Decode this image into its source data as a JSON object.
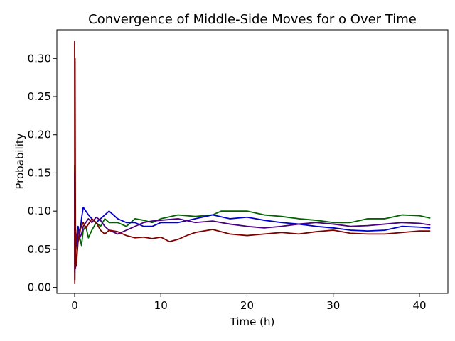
{
  "chart_data": {
    "type": "line",
    "title": "Convergence of Middle-Side Moves for o Over Time",
    "xlabel": "Time (h)",
    "ylabel": "Probability",
    "xlim": [
      -2.06,
      43.3
    ],
    "ylim": [
      -0.0078,
      0.3375
    ],
    "xticks": [
      0,
      10,
      20,
      30,
      40
    ],
    "yticks": [
      0.0,
      0.05,
      0.1,
      0.15,
      0.2,
      0.25,
      0.3
    ],
    "xtick_labels": [
      "0",
      "10",
      "20",
      "30",
      "40"
    ],
    "ytick_labels": [
      "0.00",
      "0.05",
      "0.10",
      "0.15",
      "0.20",
      "0.25",
      "0.30"
    ],
    "grid": false,
    "legend": "none",
    "series": [
      {
        "color": "#006400",
        "x": [
          0,
          0.02,
          0.05,
          0.1,
          0.15,
          0.2,
          0.3,
          0.4,
          0.6,
          0.8,
          1.0,
          1.3,
          1.6,
          2.0,
          2.5,
          3.0,
          3.5,
          4.0,
          5.0,
          6.0,
          7.0,
          8.0,
          9.0,
          10.0,
          12.0,
          14.0,
          16.0,
          17.0,
          18.0,
          20.0,
          22.0,
          24.0,
          26.0,
          28.0,
          30.0,
          32.0,
          34.0,
          36.0,
          38.0,
          40.0,
          41.2
        ],
        "y": [
          0.16,
          0.01,
          0.08,
          0.03,
          0.07,
          0.055,
          0.075,
          0.06,
          0.065,
          0.055,
          0.075,
          0.08,
          0.065,
          0.075,
          0.085,
          0.08,
          0.09,
          0.085,
          0.085,
          0.08,
          0.09,
          0.088,
          0.085,
          0.09,
          0.095,
          0.093,
          0.095,
          0.1,
          0.1,
          0.1,
          0.095,
          0.093,
          0.09,
          0.088,
          0.085,
          0.085,
          0.09,
          0.09,
          0.095,
          0.094,
          0.091
        ]
      },
      {
        "color": "#0000cd",
        "x": [
          0,
          0.02,
          0.05,
          0.1,
          0.15,
          0.2,
          0.3,
          0.4,
          0.6,
          0.8,
          1.0,
          1.3,
          1.6,
          2.0,
          2.5,
          3.0,
          3.5,
          4.0,
          5.0,
          6.0,
          7.0,
          8.0,
          9.0,
          10.0,
          12.0,
          14.0,
          16.0,
          18.0,
          20.0,
          22.0,
          24.0,
          26.0,
          28.0,
          30.0,
          32.0,
          34.0,
          36.0,
          38.0,
          40.0,
          41.2
        ],
        "y": [
          0.15,
          0.02,
          0.11,
          0.04,
          0.06,
          0.065,
          0.055,
          0.08,
          0.07,
          0.09,
          0.105,
          0.1,
          0.095,
          0.09,
          0.085,
          0.09,
          0.095,
          0.1,
          0.09,
          0.085,
          0.085,
          0.08,
          0.08,
          0.085,
          0.085,
          0.09,
          0.095,
          0.09,
          0.092,
          0.088,
          0.085,
          0.083,
          0.08,
          0.078,
          0.075,
          0.074,
          0.075,
          0.08,
          0.079,
          0.078
        ]
      },
      {
        "color": "#4b0082",
        "x": [
          0,
          0.02,
          0.05,
          0.1,
          0.15,
          0.2,
          0.3,
          0.4,
          0.6,
          0.8,
          1.0,
          1.3,
          1.6,
          2.0,
          2.5,
          3.0,
          3.5,
          4.0,
          5.0,
          6.0,
          7.0,
          8.0,
          9.0,
          10.0,
          12.0,
          14.0,
          16.0,
          18.0,
          20.0,
          22.0,
          24.0,
          26.0,
          28.0,
          30.0,
          32.0,
          34.0,
          36.0,
          38.0,
          40.0,
          41.2
        ],
        "y": [
          0.09,
          0.01,
          0.06,
          0.025,
          0.05,
          0.06,
          0.07,
          0.075,
          0.065,
          0.07,
          0.08,
          0.085,
          0.09,
          0.085,
          0.092,
          0.088,
          0.08,
          0.075,
          0.07,
          0.075,
          0.08,
          0.085,
          0.087,
          0.088,
          0.09,
          0.085,
          0.087,
          0.083,
          0.08,
          0.078,
          0.08,
          0.083,
          0.085,
          0.083,
          0.08,
          0.081,
          0.083,
          0.085,
          0.084,
          0.082
        ]
      },
      {
        "color": "#800000",
        "x": [
          0,
          0.02,
          0.05,
          0.1,
          0.15,
          0.2,
          0.3,
          0.4,
          0.6,
          0.8,
          1.0,
          1.3,
          1.6,
          2.0,
          2.5,
          3.0,
          3.5,
          4.0,
          5.0,
          6.0,
          7.0,
          8.0,
          9.0,
          10.0,
          11.0,
          12.0,
          13.0,
          14.0,
          16.0,
          18.0,
          20.0,
          22.0,
          24.0,
          26.0,
          28.0,
          30.0,
          32.0,
          34.0,
          36.0,
          38.0,
          40.0,
          41.2
        ],
        "y": [
          0.322,
          0.005,
          0.3,
          0.08,
          0.03,
          0.028,
          0.045,
          0.06,
          0.075,
          0.08,
          0.085,
          0.078,
          0.083,
          0.09,
          0.085,
          0.075,
          0.07,
          0.075,
          0.073,
          0.068,
          0.065,
          0.066,
          0.064,
          0.066,
          0.06,
          0.063,
          0.068,
          0.072,
          0.076,
          0.07,
          0.068,
          0.07,
          0.072,
          0.07,
          0.073,
          0.075,
          0.071,
          0.07,
          0.07,
          0.072,
          0.074,
          0.074
        ]
      }
    ]
  }
}
